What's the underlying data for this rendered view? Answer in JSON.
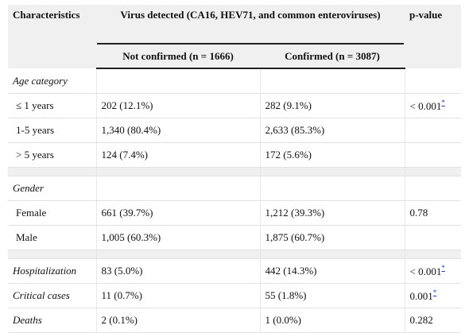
{
  "table": {
    "header": {
      "characteristics": "Characteristics",
      "virus_detected": "Virus detected (CA16, HEV71, and common enteroviruses)",
      "p_value": "p-value",
      "not_confirmed": "Not confirmed (n = 1666)",
      "confirmed": "Confirmed (n = 3087)"
    },
    "age": {
      "label": "Age category",
      "lt1": {
        "label": "≤ 1 years",
        "not_confirmed": "202 (12.1%)",
        "confirmed": "282 (9.1%)",
        "p": "< 0.001",
        "mark": "*"
      },
      "y1_5": {
        "label": "1-5 years",
        "not_confirmed": "1,340 (80.4%)",
        "confirmed": "2,633 (85.3%)"
      },
      "gt5": {
        "label": "> 5 years",
        "not_confirmed": "124 (7.4%)",
        "confirmed": "172 (5.6%)"
      }
    },
    "gender": {
      "label": "Gender",
      "female": {
        "label": "Female",
        "not_confirmed": "661 (39.7%)",
        "confirmed": "1,212 (39.3%)",
        "p": "0.78"
      },
      "male": {
        "label": "Male",
        "not_confirmed": "1,005 (60.3%)",
        "confirmed": "1,875 (60.7%)"
      }
    },
    "hospitalization": {
      "label": "Hospitalization",
      "not_confirmed": "83 (5.0%)",
      "confirmed": "442 (14.3%)",
      "p": "< 0.001",
      "mark": "*"
    },
    "critical": {
      "label": "Critical cases",
      "not_confirmed": "11 (0.7%)",
      "confirmed": "55 (1.8%)",
      "p": "0.001",
      "mark": "*"
    },
    "deaths": {
      "label": "Deaths",
      "not_confirmed": "2 (0.1%)",
      "confirmed": "1 (0.0%)",
      "p": "0.282"
    }
  }
}
